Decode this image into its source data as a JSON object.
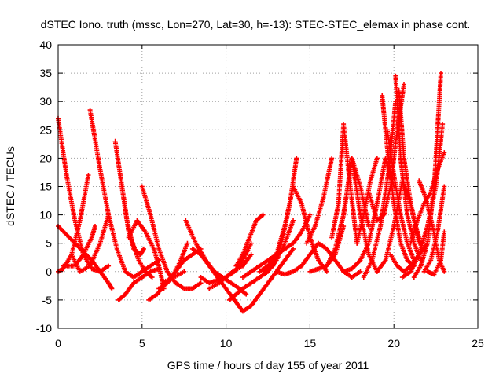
{
  "chart_data": {
    "type": "scatter",
    "title": "dSTEC Iono. truth (mssc, Lon=270, Lat=30, h=-13): STEC-STEC_elemax in phase cont.",
    "xlabel": "GPS time / hours of day 155 of year 2011",
    "ylabel": "dSTEC  / TECUs",
    "xlim": [
      0,
      25
    ],
    "ylim": [
      -10,
      40
    ],
    "xticks": [
      0,
      5,
      10,
      15,
      20,
      25
    ],
    "yticks": [
      -10,
      -5,
      0,
      5,
      10,
      15,
      20,
      25,
      30,
      35,
      40
    ],
    "grid": true,
    "marker": "+",
    "color": "#ff0000",
    "series": [
      {
        "x": [
          0.0,
          0.5,
          1.0,
          1.5,
          2.0,
          2.5,
          3.0
        ],
        "y": [
          27,
          17,
          9,
          3,
          0.5,
          0,
          1
        ]
      },
      {
        "x": [
          0.0,
          1.0,
          2.0,
          2.5,
          3.0,
          3.2
        ],
        "y": [
          8,
          5,
          2,
          0,
          -2,
          -3
        ]
      },
      {
        "x": [
          0.0,
          0.3,
          0.8,
          1.3,
          1.8
        ],
        "y": [
          0,
          0.5,
          3,
          9,
          17
        ]
      },
      {
        "x": [
          0.3,
          1.0,
          1.5,
          2.0,
          2.2
        ],
        "y": [
          1,
          1,
          3,
          6,
          8
        ]
      },
      {
        "x": [
          0.8,
          1.3,
          1.9,
          2.5,
          3.0
        ],
        "y": [
          3,
          0,
          1,
          5,
          10
        ]
      },
      {
        "x": [
          1.9,
          2.5,
          3.0,
          3.5,
          4.0,
          4.5,
          5.0,
          5.5,
          6.0
        ],
        "y": [
          28.5,
          18,
          10,
          4,
          0,
          -1,
          0,
          1,
          2
        ]
      },
      {
        "x": [
          3.4,
          3.8,
          4.2,
          4.8,
          5.2,
          5.6
        ],
        "y": [
          23,
          15,
          7,
          2,
          0,
          -1
        ]
      },
      {
        "x": [
          3.6,
          4.0,
          4.5,
          5.0,
          5.5,
          6.0
        ],
        "y": [
          -5,
          -4,
          -2,
          -1,
          0,
          0.5
        ]
      },
      {
        "x": [
          3.8,
          4.1,
          4.5,
          4.9,
          5.1
        ],
        "y": [
          15,
          9,
          4,
          3,
          4
        ]
      },
      {
        "x": [
          4.2,
          4.7,
          5.2,
          5.7,
          6.0,
          6.3
        ],
        "y": [
          6,
          9,
          7,
          4,
          1,
          -3
        ]
      },
      {
        "x": [
          5.0,
          5.5,
          6.0,
          6.5,
          7.0,
          7.5,
          8.0,
          8.5
        ],
        "y": [
          15,
          10,
          4,
          0,
          -2,
          -3,
          -3,
          -2
        ]
      },
      {
        "x": [
          5.4,
          5.9,
          6.4,
          6.9,
          7.5
        ],
        "y": [
          -5,
          -4,
          -2,
          -1,
          0
        ]
      },
      {
        "x": [
          6.0,
          6.5,
          7.0,
          7.5,
          8.0,
          8.5
        ],
        "y": [
          -3,
          -2,
          0,
          2,
          3,
          4
        ]
      },
      {
        "x": [
          6.2,
          6.8,
          7.3,
          7.7
        ],
        "y": [
          -2,
          -1,
          2,
          5
        ]
      },
      {
        "x": [
          7.6,
          8.2,
          8.8,
          9.3,
          9.8,
          10.3,
          10.8,
          11.2
        ],
        "y": [
          9,
          5,
          2,
          0,
          -1,
          -2,
          -3,
          -4
        ]
      },
      {
        "x": [
          8.0,
          8.5,
          9.0,
          9.5,
          10.0,
          10.5,
          11.0,
          11.5,
          12.0,
          12.5,
          13.0,
          13.5,
          14.0
        ],
        "y": [
          4,
          3,
          1,
          -1,
          -3,
          -5,
          -7,
          -6,
          -4,
          -2,
          0,
          2,
          4
        ]
      },
      {
        "x": [
          8.5,
          9.0,
          9.5,
          10.0,
          10.5,
          11.0,
          11.5
        ],
        "y": [
          -1,
          -2,
          -1.5,
          -1,
          0,
          2,
          5
        ]
      },
      {
        "x": [
          9.0,
          9.6,
          10.0,
          10.4,
          11.0,
          11.5
        ],
        "y": [
          -3,
          -2,
          -1,
          0,
          1,
          3
        ]
      },
      {
        "x": [
          10.2,
          10.6,
          11.0,
          11.5,
          12.0,
          12.5,
          13.0,
          13.5,
          14.0
        ],
        "y": [
          -5,
          -4,
          -3,
          -2,
          -1,
          0,
          2,
          5,
          9
        ]
      },
      {
        "x": [
          10.6,
          11.0,
          11.4,
          11.8,
          12.2
        ],
        "y": [
          1,
          3,
          6,
          9,
          10
        ]
      },
      {
        "x": [
          11.0,
          11.5,
          12.0,
          12.5,
          13.0,
          13.5,
          14.0,
          14.5,
          15.0
        ],
        "y": [
          -1,
          0,
          1,
          2,
          3,
          4,
          5,
          7,
          10
        ]
      },
      {
        "x": [
          12.0,
          12.5,
          13.0,
          13.5,
          14.0,
          14.5,
          15.0,
          15.5,
          16.0
        ],
        "y": [
          0,
          1,
          3,
          8,
          15,
          12,
          6,
          2,
          0
        ]
      },
      {
        "x": [
          12.3,
          12.8,
          13.3,
          13.8,
          14.2
        ],
        "y": [
          0,
          1,
          5,
          12,
          20
        ]
      },
      {
        "x": [
          13.0,
          13.5,
          14.0,
          14.5,
          15.0,
          15.5,
          16.0,
          16.5,
          17.0,
          17.5,
          18.0
        ],
        "y": [
          0,
          -0.5,
          0,
          1,
          3,
          5,
          4,
          2,
          0,
          -1,
          0
        ]
      },
      {
        "x": [
          14.8,
          15.3,
          15.8,
          16.3
        ],
        "y": [
          5,
          8,
          13,
          20
        ]
      },
      {
        "x": [
          15.0,
          15.5,
          16.0,
          16.5,
          17.0
        ],
        "y": [
          0,
          0.5,
          1,
          3,
          8
        ]
      },
      {
        "x": [
          16.0,
          16.5,
          17.0,
          17.5,
          18.0,
          18.5,
          19.0
        ],
        "y": [
          1,
          4,
          10,
          20,
          10,
          3,
          0
        ]
      },
      {
        "x": [
          16.3,
          16.7,
          17.0,
          17.4,
          17.8
        ],
        "y": [
          6,
          12,
          26,
          15,
          5
        ]
      },
      {
        "x": [
          16.6,
          17.0,
          17.5,
          18.0,
          18.5
        ],
        "y": [
          5,
          10,
          20,
          15,
          8
        ]
      },
      {
        "x": [
          17.0,
          17.5,
          18.0,
          18.5,
          19.0,
          19.5,
          20.0
        ],
        "y": [
          0,
          0.5,
          2,
          5,
          12,
          20,
          15
        ]
      },
      {
        "x": [
          17.8,
          18.2,
          18.6,
          19.0
        ],
        "y": [
          5,
          10,
          16,
          20
        ]
      },
      {
        "x": [
          18.2,
          18.7,
          19.2,
          19.7,
          20.1
        ],
        "y": [
          -1,
          2,
          8,
          18,
          30
        ]
      },
      {
        "x": [
          18.5,
          19.0,
          19.4,
          19.8,
          20.2,
          20.6
        ],
        "y": [
          14,
          9,
          10,
          15,
          25,
          33
        ]
      },
      {
        "x": [
          19.0,
          19.5,
          20.0,
          20.5,
          21.0,
          21.5
        ],
        "y": [
          0,
          2,
          8,
          16,
          12,
          5
        ]
      },
      {
        "x": [
          19.3,
          19.6,
          20.0,
          20.4,
          20.8,
          21.2
        ],
        "y": [
          31,
          22,
          12,
          5,
          2,
          1
        ]
      },
      {
        "x": [
          19.6,
          20.0,
          20.4,
          20.8,
          21.2
        ],
        "y": [
          25,
          17,
          10,
          5,
          2
        ]
      },
      {
        "x": [
          19.8,
          20.2,
          20.6,
          21.0,
          21.5,
          22.0
        ],
        "y": [
          3,
          1,
          0,
          1,
          3,
          5
        ]
      },
      {
        "x": [
          20.1,
          20.4,
          20.8,
          21.2,
          21.6
        ],
        "y": [
          34.5,
          20,
          10,
          5,
          2
        ]
      },
      {
        "x": [
          20.3,
          20.6,
          21.0,
          21.3,
          21.6
        ],
        "y": [
          32,
          20,
          12,
          8,
          5
        ]
      },
      {
        "x": [
          20.5,
          21.0,
          21.5,
          22.0,
          22.5,
          22.9
        ],
        "y": [
          -1,
          0,
          3,
          8,
          15,
          26
        ]
      },
      {
        "x": [
          21.0,
          21.4,
          21.8,
          22.2,
          22.6,
          23.0
        ],
        "y": [
          5,
          9,
          12,
          14,
          18,
          21
        ]
      },
      {
        "x": [
          21.2,
          21.6,
          22.0,
          22.4,
          22.8
        ],
        "y": [
          -1,
          1,
          5,
          15,
          35
        ]
      },
      {
        "x": [
          21.5,
          21.9,
          22.3,
          22.7,
          23.0
        ],
        "y": [
          16,
          13,
          8,
          2,
          0
        ]
      },
      {
        "x": [
          21.8,
          22.2,
          22.6,
          23.0
        ],
        "y": [
          0,
          2,
          7,
          15
        ]
      },
      {
        "x": [
          22.0,
          22.4,
          22.8,
          23.0
        ],
        "y": [
          0,
          -0.5,
          2,
          7
        ]
      }
    ]
  }
}
